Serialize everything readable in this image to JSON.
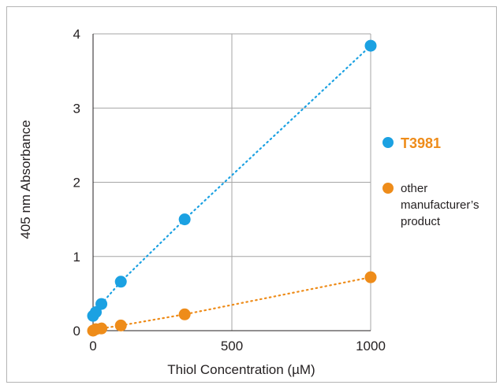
{
  "colors": {
    "series_blue": "#1ba1e2",
    "series_orange": "#ee8c1a",
    "grid": "#a6a6a6",
    "axis": "#231f20"
  },
  "chart_data": {
    "type": "scatter",
    "title": "",
    "xlabel": "Thiol Concentration (µM)",
    "ylabel": "405 nm Absorbance",
    "xlim": [
      0,
      1000
    ],
    "ylim": [
      0,
      4
    ],
    "xticks": [
      0,
      500,
      1000
    ],
    "yticks": [
      0,
      1,
      2,
      3,
      4
    ],
    "grid": true,
    "legend_position": "right",
    "series": [
      {
        "name": "T3981",
        "color": "#1ba1e2",
        "line": "dotted",
        "x": [
          0,
          10,
          30,
          100,
          330,
          1000
        ],
        "y": [
          0.2,
          0.25,
          0.36,
          0.66,
          1.5,
          3.84
        ]
      },
      {
        "name_lines": [
          "other",
          "manufacturer’s",
          "product"
        ],
        "color": "#ee8c1a",
        "line": "dotted",
        "x": [
          0,
          10,
          30,
          100,
          330,
          1000
        ],
        "y": [
          0.0,
          0.02,
          0.03,
          0.07,
          0.22,
          0.72
        ]
      }
    ]
  }
}
